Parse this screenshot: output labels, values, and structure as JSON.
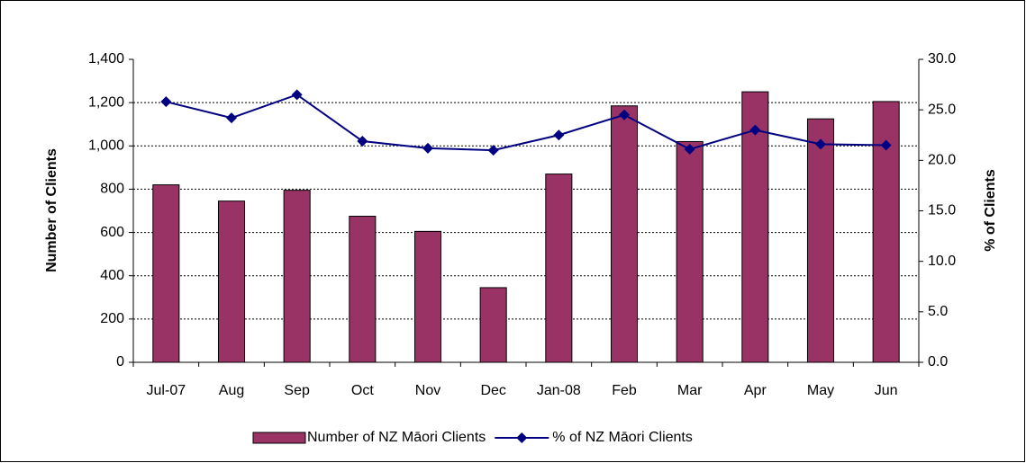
{
  "chart_data": {
    "type": "bar-line",
    "categories": [
      "Jul-07",
      "Aug",
      "Sep",
      "Oct",
      "Nov",
      "Dec",
      "Jan-08",
      "Feb",
      "Mar",
      "Apr",
      "May",
      "Jun"
    ],
    "y_label": "Number of Clients",
    "y2_label": "% of Clients",
    "ylim": [
      0,
      1400
    ],
    "yticks": [
      {
        "value": 0,
        "label": "0"
      },
      {
        "value": 200,
        "label": "200"
      },
      {
        "value": 400,
        "label": "400"
      },
      {
        "value": 600,
        "label": "600"
      },
      {
        "value": 800,
        "label": "800"
      },
      {
        "value": 1000,
        "label": "1,000"
      },
      {
        "value": 1200,
        "label": "1,200"
      },
      {
        "value": 1400,
        "label": "1,400"
      }
    ],
    "y2lim": [
      0,
      30
    ],
    "y2ticks": [
      {
        "value": 0,
        "label": "0.0"
      },
      {
        "value": 5,
        "label": "5.0"
      },
      {
        "value": 10,
        "label": "10.0"
      },
      {
        "value": 15,
        "label": "15.0"
      },
      {
        "value": 20,
        "label": "20.0"
      },
      {
        "value": 25,
        "label": "25.0"
      },
      {
        "value": 30,
        "label": "30.0"
      }
    ],
    "grid": true,
    "legend": "bottom",
    "series": [
      {
        "name": "Number of NZ Māori Clients",
        "type": "bar",
        "color": "#993366",
        "values": [
          820,
          745,
          795,
          675,
          605,
          345,
          870,
          1185,
          1020,
          1250,
          1125,
          1205
        ]
      },
      {
        "name": "% of NZ Māori Clients",
        "type": "line",
        "axis": "y2",
        "color": "#000080",
        "values": [
          25.8,
          24.2,
          26.5,
          21.9,
          21.2,
          21.0,
          22.5,
          24.5,
          21.1,
          23.0,
          21.6,
          21.5
        ]
      }
    ]
  }
}
